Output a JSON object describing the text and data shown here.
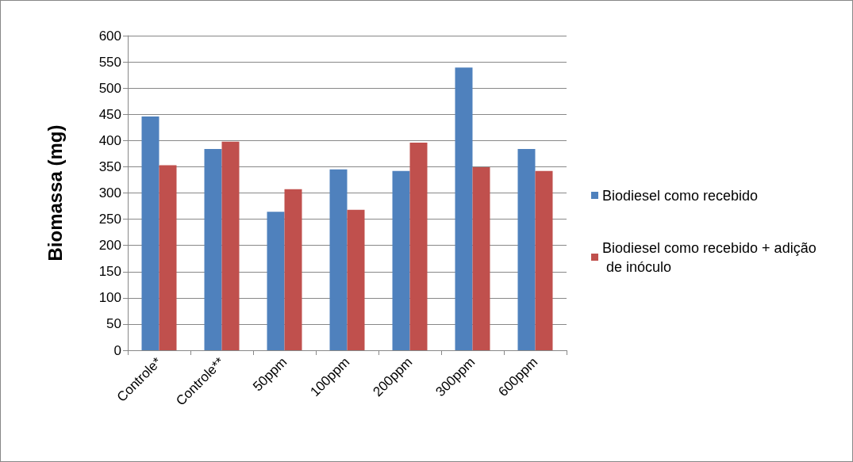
{
  "chart_data": {
    "type": "bar",
    "ylabel": "Biomassa (mg)",
    "categories": [
      "Controle*",
      "Controle**",
      "50ppm",
      "100ppm",
      "200ppm",
      "300ppm",
      "600ppm"
    ],
    "series": [
      {
        "name": "Biodiesel como recebido",
        "color": "#4f81bd",
        "values": [
          446,
          384,
          264,
          345,
          342,
          539,
          384
        ]
      },
      {
        "name": "Biodiesel como recebido + adição de inóculo",
        "color": "#c0504d",
        "values": [
          353,
          398,
          307,
          268,
          396,
          349,
          342
        ]
      }
    ],
    "ylim": [
      0,
      600
    ],
    "yticks": [
      0,
      50,
      100,
      150,
      200,
      250,
      300,
      350,
      400,
      450,
      500,
      550,
      600
    ],
    "grid": "y",
    "legend": "right"
  }
}
